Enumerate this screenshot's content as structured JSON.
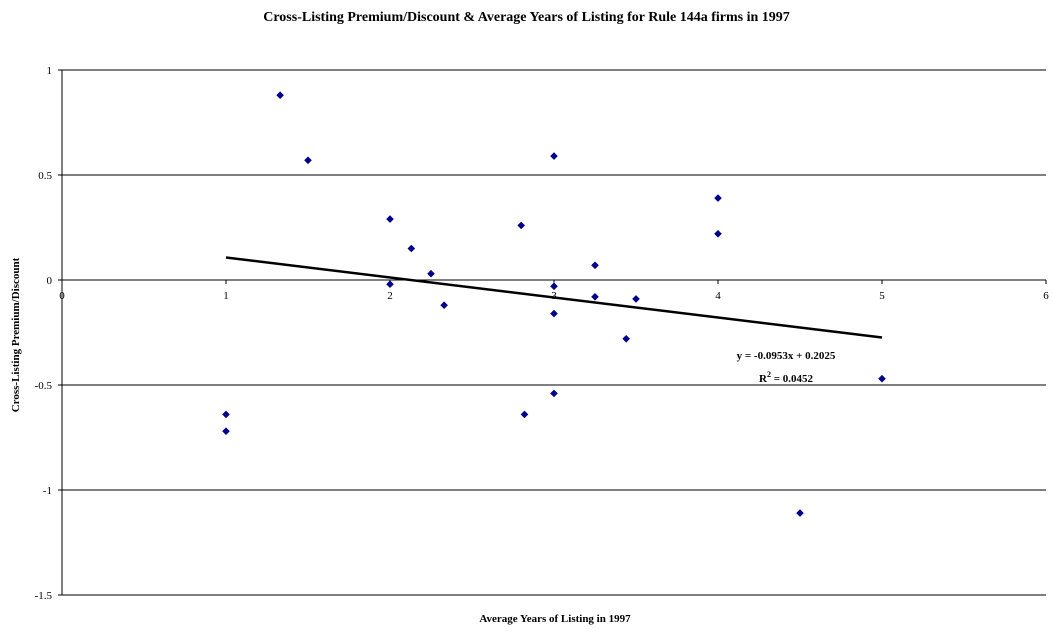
{
  "chart_data": {
    "type": "scatter",
    "title": "Cross-Listing Premium/Discount & Average Years of Listing for Rule 144a firms in 1997",
    "xlabel": "Average Years of Listing in 1997",
    "ylabel": "Cross-Listing Premium/Discount",
    "xlim": [
      0,
      6
    ],
    "ylim": [
      -1.5,
      1
    ],
    "xticks": [
      0,
      1,
      2,
      3,
      4,
      5,
      6
    ],
    "yticks": [
      1,
      0.5,
      0,
      -0.5,
      -1,
      -1.5
    ],
    "yticks_labels": [
      "1",
      "0.5",
      "0",
      "-0.5",
      "-1",
      "-1.5"
    ],
    "grid": "horizontal",
    "marker_color": "#00008B",
    "points": [
      {
        "x": 1.33,
        "y": 0.88
      },
      {
        "x": 1.5,
        "y": 0.57
      },
      {
        "x": 2.0,
        "y": 0.29
      },
      {
        "x": 2.0,
        "y": -0.02
      },
      {
        "x": 2.13,
        "y": 0.15
      },
      {
        "x": 2.25,
        "y": 0.03
      },
      {
        "x": 2.33,
        "y": -0.12
      },
      {
        "x": 2.8,
        "y": 0.26
      },
      {
        "x": 2.82,
        "y": -0.64
      },
      {
        "x": 3.0,
        "y": 0.59
      },
      {
        "x": 3.0,
        "y": -0.03
      },
      {
        "x": 3.0,
        "y": -0.16
      },
      {
        "x": 3.0,
        "y": -0.54
      },
      {
        "x": 3.25,
        "y": 0.07
      },
      {
        "x": 3.25,
        "y": -0.08
      },
      {
        "x": 3.44,
        "y": -0.28
      },
      {
        "x": 3.5,
        "y": -0.09
      },
      {
        "x": 4.0,
        "y": 0.39
      },
      {
        "x": 4.0,
        "y": 0.22
      },
      {
        "x": 4.5,
        "y": -1.11
      },
      {
        "x": 5.0,
        "y": -0.47
      },
      {
        "x": 1.0,
        "y": -0.64
      },
      {
        "x": 1.0,
        "y": -0.72
      }
    ],
    "trendline": {
      "type": "linear",
      "slope": -0.0953,
      "intercept": 0.2025,
      "x_range": [
        1,
        5
      ],
      "equation_label": "y = -0.0953x + 0.2025",
      "r2_label_prefix": "R",
      "r2_label_sup": "2",
      "r2_label_value": " = 0.0452"
    }
  }
}
